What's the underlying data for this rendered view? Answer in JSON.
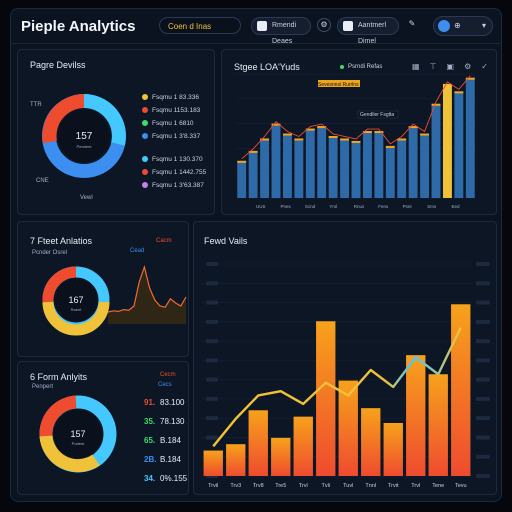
{
  "header": {
    "title": "Pieple Analytics",
    "search_text": "Coen d Inas",
    "btn1_label": "Rmendi Deaes",
    "btn2_label": "Aantmerl Dimel"
  },
  "people_panel": {
    "title": "Pagre Devilss",
    "donut_value": "157",
    "donut_sub": "Pendent",
    "label_left": "TTR",
    "label_bottom_left": "CNE",
    "label_bottom": "Vewl",
    "legend": [
      {
        "label": "Fsqmu 1 83.336",
        "color": "#f0c23a"
      },
      {
        "label": "Fsqmu 1153.183",
        "color": "#ef4b2f"
      },
      {
        "label": "Fsqmu 1 6810",
        "color": "#3ddc6a"
      },
      {
        "label": "Fsqmu 1 3'8.337",
        "color": "#3c8ef0"
      },
      {
        "label": "Fsqmu 1 130.370",
        "color": "#45c7ff"
      },
      {
        "label": "Fsqmu 1 1442.755",
        "color": "#ef4b2f"
      },
      {
        "label": "Fsqmu 1 3'63.387",
        "color": "#c77df0"
      }
    ]
  },
  "stages_panel": {
    "title": "Stgee LOA'Yuds",
    "legend_label": "Psrndi Refas",
    "yellow_label": "Sevesnnsi Rurrlns",
    "sub_label": "Gendiler Fsgtta",
    "x_labels": [
      "UUS",
      "Pnes",
      "Scnd",
      "Yrsl",
      "Rnus",
      "Fens",
      "Psnt",
      "Sms",
      "Eed"
    ]
  },
  "fleet_panel": {
    "title": "7 Fteet Anlatios",
    "sub": "Pcnder Osrel",
    "red_tag": "Cacm",
    "blue_tag": "Cead",
    "donut_value": "167",
    "donut_sub": "Raent"
  },
  "form_panel": {
    "title": "6 Form Anlyits",
    "sub": "Penpert",
    "red_tag": "Cecm",
    "blue_tag": "Cecs",
    "donut_value": "157",
    "donut_sub": "Podent",
    "rows": [
      {
        "n": "91.",
        "v": "83.100",
        "color": "#ef4b2f"
      },
      {
        "n": "35.",
        "v": "78.130",
        "color": "#3ddc6a"
      },
      {
        "n": "65.",
        "v": "B.184",
        "color": "#3ddc6a"
      },
      {
        "n": "2B.",
        "v": "B.184",
        "color": "#3c8ef0"
      },
      {
        "n": "34.",
        "v": "0%.155",
        "color": "#45c7ff"
      }
    ]
  },
  "main_panel": {
    "title": "Fewd Vails"
  },
  "colors": {
    "accent_yellow": "#f0c23a",
    "accent_red": "#ef4b2f",
    "accent_blue": "#3c8ef0",
    "accent_cyan": "#45c7ff",
    "accent_green": "#3ddc6a"
  },
  "chart_data": [
    {
      "type": "bar",
      "title": "Stgee LOA'Yuds",
      "categories": [
        "1",
        "2",
        "3",
        "4",
        "5",
        "6",
        "7",
        "8",
        "9",
        "10",
        "11",
        "12",
        "13",
        "14",
        "15",
        "16",
        "17",
        "18",
        "19",
        "20",
        "21"
      ],
      "series": [
        {
          "name": "Psrndi Refas",
          "values": [
            30,
            38,
            48,
            60,
            52,
            48,
            56,
            58,
            50,
            48,
            46,
            54,
            54,
            42,
            48,
            58,
            52,
            76,
            92,
            86,
            97
          ]
        }
      ],
      "highlight_index": 18,
      "ylim": [
        0,
        100
      ]
    },
    {
      "type": "area",
      "title": "7 Fteet Anlatios",
      "x": [
        0,
        1,
        2,
        3,
        4,
        5,
        6,
        7,
        8,
        9,
        10,
        11,
        12,
        13,
        14,
        15
      ],
      "series": [
        {
          "values": [
            20,
            22,
            21,
            24,
            23,
            30,
            70,
            95,
            60,
            40,
            30,
            28,
            42,
            35,
            30,
            45
          ]
        }
      ],
      "ylim": [
        0,
        100
      ]
    },
    {
      "type": "bar",
      "title": "Fewd Vails",
      "categories": [
        "Trvil",
        "Trv3",
        "Trv8",
        "Tre5",
        "Trvl",
        "Tvli",
        "Tuvl",
        "Tnnl",
        "Trvit",
        "Trvl",
        "Tene",
        "Tevu"
      ],
      "series": [
        {
          "name": "bars",
          "values": [
            12,
            15,
            31,
            18,
            28,
            73,
            45,
            32,
            25,
            57,
            48,
            81
          ]
        },
        {
          "name": "line",
          "values": [
            14,
            27,
            38,
            40,
            34,
            44,
            38,
            50,
            42,
            56,
            48,
            70
          ]
        }
      ],
      "ylim": [
        0,
        100
      ]
    }
  ]
}
